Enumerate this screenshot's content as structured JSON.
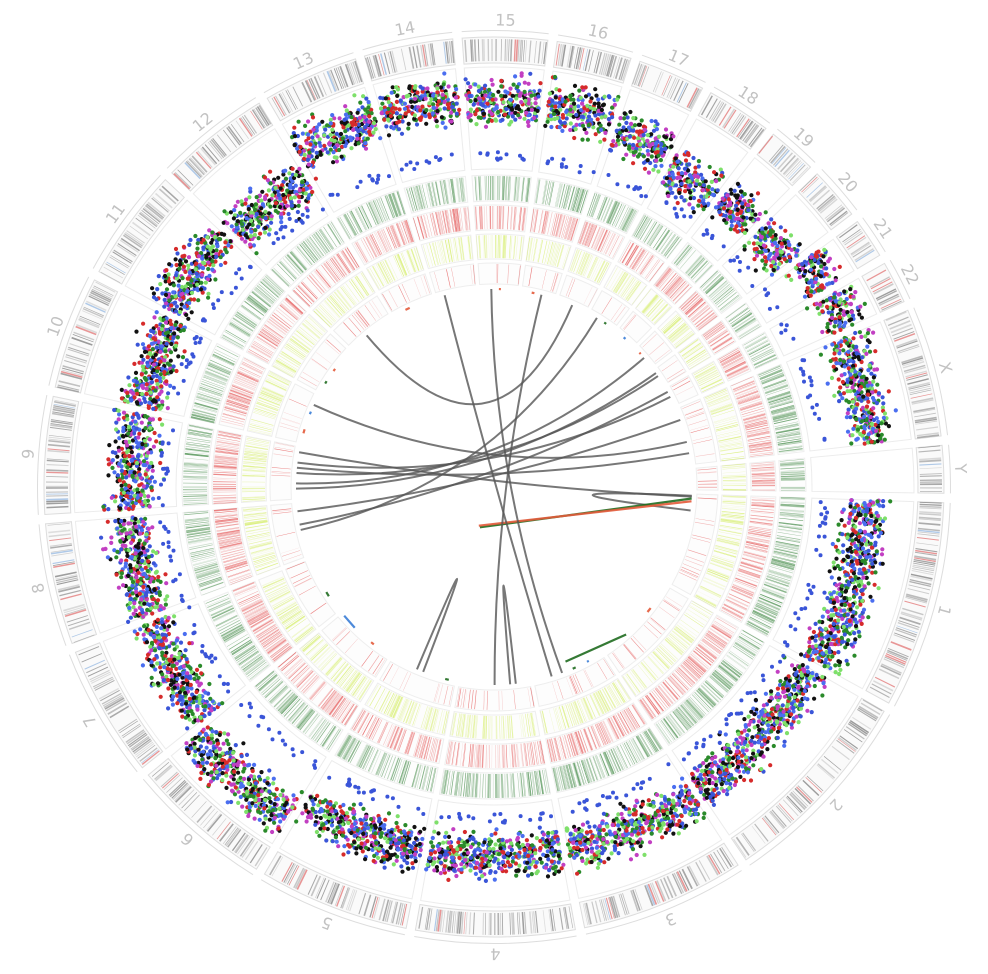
{
  "diagram": {
    "kind": "circos-genome-plot",
    "chromosomes": [
      {
        "label": "1",
        "size": 249
      },
      {
        "label": "2",
        "size": 243
      },
      {
        "label": "3",
        "size": 198
      },
      {
        "label": "4",
        "size": 191
      },
      {
        "label": "5",
        "size": 181
      },
      {
        "label": "6",
        "size": 171
      },
      {
        "label": "7",
        "size": 159
      },
      {
        "label": "8",
        "size": 146
      },
      {
        "label": "9",
        "size": 141
      },
      {
        "label": "10",
        "size": 136
      },
      {
        "label": "11",
        "size": 135
      },
      {
        "label": "12",
        "size": 133
      },
      {
        "label": "13",
        "size": 115
      },
      {
        "label": "14",
        "size": 107
      },
      {
        "label": "15",
        "size": 102
      },
      {
        "label": "16",
        "size": 90
      },
      {
        "label": "17",
        "size": 81
      },
      {
        "label": "18",
        "size": 78
      },
      {
        "label": "19",
        "size": 59
      },
      {
        "label": "20",
        "size": 63
      },
      {
        "label": "21",
        "size": 48
      },
      {
        "label": "22",
        "size": 51
      },
      {
        "label": "X",
        "size": 155
      },
      {
        "label": "Y",
        "size": 57
      }
    ],
    "tracks": [
      "ideogram",
      "scatter",
      "heatmap-green",
      "heatmap-red",
      "heatmap-yellow",
      "heatmap-red-sparse",
      "links"
    ],
    "colors": {
      "ring_border": "#dddddd",
      "label": "#c2c2c2",
      "band_gray": "#8a8a8a",
      "band_red": "#e06b6b",
      "band_blue": "#8fb3e0",
      "scatter": [
        "#3a55d8",
        "#d62b2b",
        "#2a8a2a",
        "#111111",
        "#7ee06a",
        "#c23fc2",
        "#4a6ef0"
      ],
      "heat_green": "#2e7d32",
      "heat_red": "#e03b3b",
      "heat_yellow": "#cdea4a",
      "link_black": "#555555",
      "link_red": "#e35a3a",
      "link_green": "#1f6b1f",
      "link_blue": "#3a7dd6"
    },
    "links": [
      {
        "from": [
          0,
          0.02
        ],
        "to": [
          0,
          0.18
        ],
        "color": "link_black"
      },
      {
        "from": [
          0,
          0.03
        ],
        "to": [
          8,
          0.9
        ],
        "color": "link_black"
      },
      {
        "from": [
          0,
          0.05
        ],
        "to": [
          7,
          0.1
        ],
        "color": "link_green"
      },
      {
        "from": [
          0,
          0.08
        ],
        "to": [
          7,
          0.2
        ],
        "color": "link_red"
      },
      {
        "from": [
          1,
          0.3
        ],
        "to": [
          1,
          0.4
        ],
        "color": "link_red"
      },
      {
        "from": [
          1,
          0.7
        ],
        "to": [
          3,
          0.2
        ],
        "color": "link_green"
      },
      {
        "from": [
          2,
          0.2
        ],
        "to": [
          2,
          0.25
        ],
        "color": "link_blue"
      },
      {
        "from": [
          2,
          0.4
        ],
        "to": [
          2,
          0.48
        ],
        "color": "link_green"
      },
      {
        "from": [
          2,
          0.6
        ],
        "to": [
          14,
          0.3
        ],
        "color": "link_black"
      },
      {
        "from": [
          3,
          0.5
        ],
        "to": [
          15,
          0.6
        ],
        "color": "link_black"
      },
      {
        "from": [
          3,
          0.2
        ],
        "to": [
          3,
          0.28
        ],
        "color": "link_black"
      },
      {
        "from": [
          4,
          0.1
        ],
        "to": [
          4,
          0.2
        ],
        "color": "link_green"
      },
      {
        "from": [
          4,
          0.5
        ],
        "to": [
          4,
          0.6
        ],
        "color": "link_black"
      },
      {
        "from": [
          5,
          0.3
        ],
        "to": [
          5,
          0.4
        ],
        "color": "link_red"
      },
      {
        "from": [
          5,
          0.7
        ],
        "to": [
          6,
          0.1
        ],
        "color": "link_blue"
      },
      {
        "from": [
          6,
          0.3
        ],
        "to": [
          6,
          0.45
        ],
        "color": "link_green"
      },
      {
        "from": [
          7,
          0.5
        ],
        "to": [
          17,
          0.3
        ],
        "color": "link_black"
      },
      {
        "from": [
          8,
          0.3
        ],
        "to": [
          19,
          0.5
        ],
        "color": "link_black"
      },
      {
        "from": [
          8,
          0.5
        ],
        "to": [
          20,
          0.4
        ],
        "color": "link_black"
      },
      {
        "from": [
          8,
          0.7
        ],
        "to": [
          21,
          0.5
        ],
        "color": "link_black"
      },
      {
        "from": [
          9,
          0.2
        ],
        "to": [
          9,
          0.35
        ],
        "color": "link_red"
      },
      {
        "from": [
          9,
          0.6
        ],
        "to": [
          9,
          0.7
        ],
        "color": "link_blue"
      },
      {
        "from": [
          9,
          0.8
        ],
        "to": [
          22,
          0.6
        ],
        "color": "link_black"
      },
      {
        "from": [
          10,
          0.2
        ],
        "to": [
          10,
          0.3
        ],
        "color": "link_green"
      },
      {
        "from": [
          10,
          0.5
        ],
        "to": [
          10,
          0.6
        ],
        "color": "link_red"
      },
      {
        "from": [
          11,
          0.4
        ],
        "to": [
          16,
          0.5
        ],
        "color": "link_black"
      },
      {
        "from": [
          12,
          0.3
        ],
        "to": [
          12,
          0.5
        ],
        "color": "link_red"
      },
      {
        "from": [
          13,
          0.2
        ],
        "to": [
          2,
          0.75
        ],
        "color": "link_black"
      },
      {
        "from": [
          14,
          0.5
        ],
        "to": [
          14,
          0.6
        ],
        "color": "link_red"
      },
      {
        "from": [
          15,
          0.3
        ],
        "to": [
          15,
          0.45
        ],
        "color": "link_red"
      },
      {
        "from": [
          17,
          0.6
        ],
        "to": [
          17,
          0.75
        ],
        "color": "link_green"
      },
      {
        "from": [
          18,
          0.4
        ],
        "to": [
          18,
          0.6
        ],
        "color": "link_blue"
      },
      {
        "from": [
          19,
          0.2
        ],
        "to": [
          19,
          0.35
        ],
        "color": "link_red"
      },
      {
        "from": [
          20,
          0.2
        ],
        "to": [
          8,
          0.2
        ],
        "color": "link_black"
      },
      {
        "from": [
          21,
          0.2
        ],
        "to": [
          7,
          0.6
        ],
        "color": "link_black"
      },
      {
        "from": [
          22,
          0.2
        ],
        "to": [
          7,
          0.85
        ],
        "color": "link_black"
      },
      {
        "from": [
          22,
          0.8
        ],
        "to": [
          8,
          0.6
        ],
        "color": "link_black"
      }
    ]
  }
}
